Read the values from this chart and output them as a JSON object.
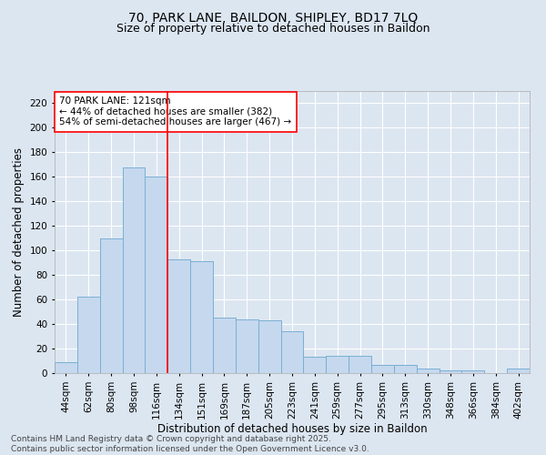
{
  "title_line1": "70, PARK LANE, BAILDON, SHIPLEY, BD17 7LQ",
  "title_line2": "Size of property relative to detached houses in Baildon",
  "xlabel": "Distribution of detached houses by size in Baildon",
  "ylabel": "Number of detached properties",
  "categories": [
    "44sqm",
    "62sqm",
    "80sqm",
    "98sqm",
    "116sqm",
    "134sqm",
    "151sqm",
    "169sqm",
    "187sqm",
    "205sqm",
    "223sqm",
    "241sqm",
    "259sqm",
    "277sqm",
    "295sqm",
    "313sqm",
    "330sqm",
    "348sqm",
    "366sqm",
    "384sqm",
    "402sqm"
  ],
  "values": [
    9,
    62,
    110,
    168,
    160,
    93,
    91,
    45,
    44,
    43,
    34,
    13,
    14,
    14,
    7,
    7,
    4,
    2,
    2,
    0,
    4
  ],
  "bar_color": "#c5d8ee",
  "bar_edge_color": "#7aafd4",
  "ylim": [
    0,
    230
  ],
  "yticks": [
    0,
    20,
    40,
    60,
    80,
    100,
    120,
    140,
    160,
    180,
    200,
    220
  ],
  "vline_x": 4.5,
  "vline_color": "red",
  "annotation_text": "70 PARK LANE: 121sqm\n← 44% of detached houses are smaller (382)\n54% of semi-detached houses are larger (467) →",
  "annotation_box_color": "white",
  "annotation_box_edge": "red",
  "fig_background_color": "#dce6f1",
  "plot_background_color": "#dce6f1",
  "grid_color": "white",
  "footnote": "Contains HM Land Registry data © Crown copyright and database right 2025.\nContains public sector information licensed under the Open Government Licence v3.0.",
  "title_fontsize": 10,
  "subtitle_fontsize": 9,
  "axis_label_fontsize": 8.5,
  "tick_fontsize": 7.5,
  "annotation_fontsize": 7.5,
  "footnote_fontsize": 6.5
}
